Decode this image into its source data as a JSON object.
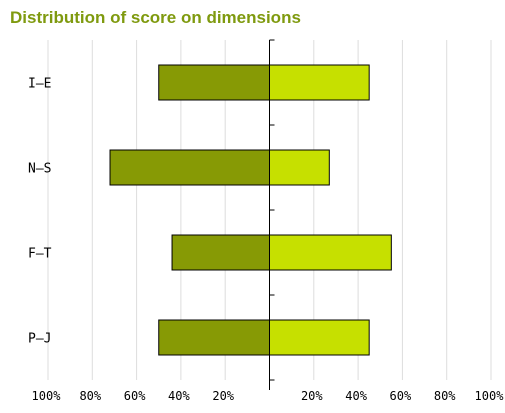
{
  "chart_data": {
    "type": "bar",
    "orientation": "horizontal-diverging",
    "title": "Distribution of score on dimensions",
    "categories": [
      "I–E",
      "N–S",
      "F–T",
      "P–J"
    ],
    "series": [
      {
        "values": [
          -50,
          -72,
          -44,
          -50
        ],
        "color": "#879a05"
      },
      {
        "values": [
          45,
          27,
          55,
          45
        ],
        "color": "#c6e000"
      }
    ],
    "xlim": [
      -100,
      100
    ],
    "x_ticks": [
      -100,
      -80,
      -60,
      -40,
      -20,
      0,
      20,
      40,
      60,
      80,
      100
    ],
    "x_tick_labels": [
      "100%",
      "80%",
      "60%",
      "40%",
      "20%",
      "",
      "20%",
      "40%",
      "60%",
      "80%",
      "100%"
    ],
    "grid": "vertical",
    "grid_color": "#dddddd",
    "title_color": "#7f9a0f"
  }
}
